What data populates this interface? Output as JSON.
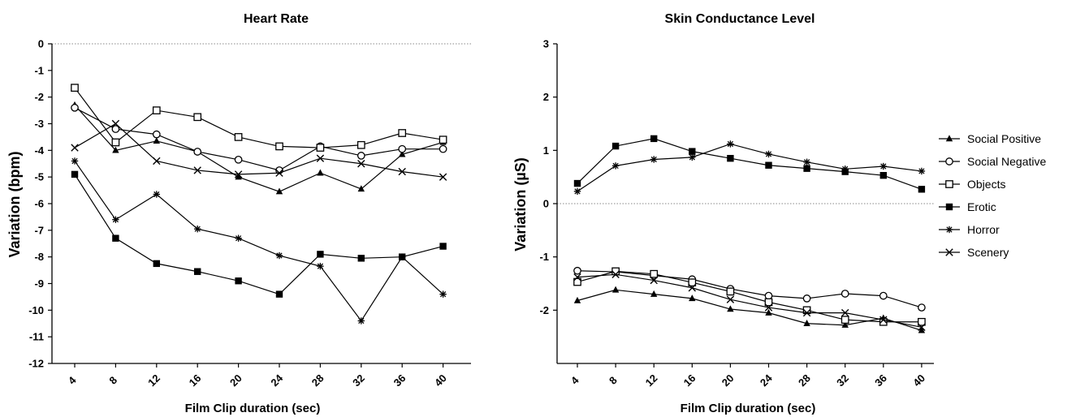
{
  "chart_data": [
    {
      "type": "line",
      "title": "Heart Rate",
      "xlabel": "Film Clip duration (sec)",
      "ylabel": "Variation (bpm)",
      "x": [
        4,
        8,
        12,
        16,
        20,
        24,
        28,
        32,
        36,
        40
      ],
      "ylim": [
        -12,
        0
      ],
      "yticks": [
        0,
        -1,
        -2,
        -3,
        -4,
        -5,
        -6,
        -7,
        -8,
        -9,
        -10,
        -11,
        -12
      ],
      "reference_line": 0,
      "series": [
        {
          "name": "Social Positive",
          "marker": "triangle",
          "values": [
            -2.3,
            -4.0,
            -3.65,
            -4.05,
            -5.0,
            -5.55,
            -4.85,
            -5.45,
            -4.15,
            -3.7
          ]
        },
        {
          "name": "Social Negative",
          "marker": "circle",
          "values": [
            -2.4,
            -3.2,
            -3.4,
            -4.05,
            -4.35,
            -4.75,
            -3.85,
            -4.2,
            -3.95,
            -3.95
          ]
        },
        {
          "name": "Objects",
          "marker": "square-open",
          "values": [
            -1.65,
            -3.7,
            -2.5,
            -2.75,
            -3.5,
            -3.85,
            -3.9,
            -3.8,
            -3.35,
            -3.6
          ]
        },
        {
          "name": "Erotic",
          "marker": "square-filled",
          "values": [
            -4.9,
            -7.3,
            -8.25,
            -8.55,
            -8.9,
            -9.4,
            -7.9,
            -8.05,
            -8.0,
            -7.6
          ]
        },
        {
          "name": "Horror",
          "marker": "star",
          "values": [
            -4.4,
            -6.6,
            -5.65,
            -6.95,
            -7.3,
            -7.95,
            -8.35,
            -10.4,
            -8.0,
            -9.4
          ]
        },
        {
          "name": "Scenery",
          "marker": "cross",
          "values": [
            -3.9,
            -3.0,
            -4.4,
            -4.75,
            -4.9,
            -4.85,
            -4.3,
            -4.5,
            -4.8,
            -5.0
          ]
        }
      ]
    },
    {
      "type": "line",
      "title": "Skin Conductance Level",
      "xlabel": "Film Clip duration (sec)",
      "ylabel": "Variation (µS)",
      "x": [
        4,
        8,
        12,
        16,
        20,
        24,
        28,
        32,
        36,
        40
      ],
      "ylim": [
        -3,
        3
      ],
      "yticks": [
        3,
        2,
        1,
        0,
        -1,
        -2
      ],
      "reference_line": 0,
      "series": [
        {
          "name": "Social Positive",
          "marker": "triangle",
          "values": [
            -1.82,
            -1.62,
            -1.7,
            -1.78,
            -1.98,
            -2.05,
            -2.25,
            -2.28,
            -2.15,
            -2.38
          ]
        },
        {
          "name": "Social Negative",
          "marker": "circle",
          "values": [
            -1.26,
            -1.28,
            -1.35,
            -1.42,
            -1.6,
            -1.73,
            -1.78,
            -1.69,
            -1.73,
            -1.95
          ]
        },
        {
          "name": "Objects",
          "marker": "square-open",
          "values": [
            -1.47,
            -1.27,
            -1.32,
            -1.48,
            -1.65,
            -1.85,
            -2.0,
            -2.18,
            -2.22,
            -2.22
          ]
        },
        {
          "name": "Erotic",
          "marker": "square-filled",
          "values": [
            0.38,
            1.08,
            1.22,
            0.98,
            0.85,
            0.72,
            0.66,
            0.6,
            0.53,
            0.27
          ]
        },
        {
          "name": "Horror",
          "marker": "star",
          "values": [
            0.23,
            0.71,
            0.83,
            0.87,
            1.12,
            0.93,
            0.78,
            0.65,
            0.7,
            0.61
          ]
        },
        {
          "name": "Scenery",
          "marker": "cross",
          "values": [
            -1.38,
            -1.33,
            -1.44,
            -1.58,
            -1.8,
            -1.95,
            -2.05,
            -2.05,
            -2.18,
            -2.32
          ]
        }
      ]
    }
  ],
  "legend": {
    "placement": "right",
    "items": [
      {
        "label": "Social Positive",
        "marker": "triangle"
      },
      {
        "label": "Social Negative",
        "marker": "circle"
      },
      {
        "label": "Objects",
        "marker": "square-open"
      },
      {
        "label": "Erotic",
        "marker": "square-filled"
      },
      {
        "label": "Horror",
        "marker": "star"
      },
      {
        "label": "Scenery",
        "marker": "cross"
      }
    ]
  },
  "colors": {
    "lines": "#000000",
    "reference_line": "#888888",
    "background": "#ffffff"
  }
}
